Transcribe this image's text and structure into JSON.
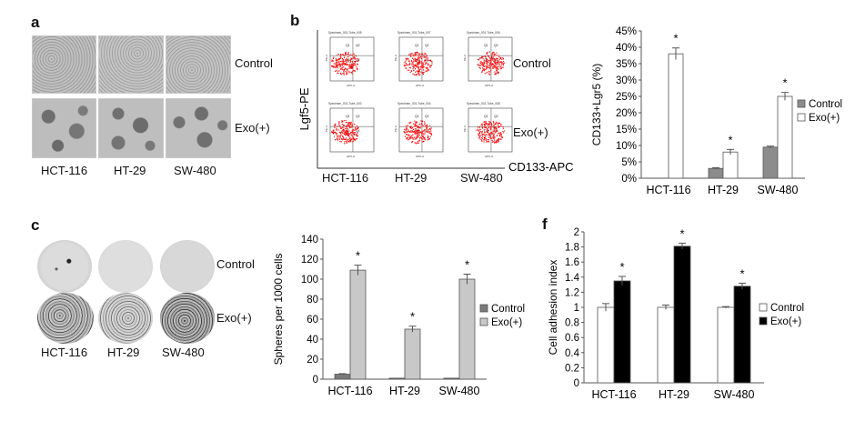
{
  "panels": {
    "a": {
      "letter": "a",
      "row_labels": [
        "Control",
        "Exo(+)"
      ],
      "col_labels": [
        "HCT-116",
        "HT-29",
        "SW-480"
      ]
    },
    "b": {
      "letter": "b",
      "row_labels": [
        "Control",
        "Exo(+)"
      ],
      "col_labels": [
        "HCT-116",
        "HT-29",
        "SW-480"
      ],
      "y_axis_label": "Lgf5-PE",
      "x_axis_label": "CD133-APC",
      "plot_titles": [
        [
          "Specimen_001-Tube_005",
          "Specimen_001-Tube_007",
          "Specimen_001-Tube_006"
        ],
        [
          "Specimen_001-Tube_003",
          "Specimen_001-Tube_004",
          "Specimen_001-Tube_008"
        ]
      ],
      "plot_axis_short": {
        "y": "PE-A",
        "x": "APC-A"
      },
      "quadrants": [
        "Q1",
        "Q2",
        "Q3",
        "Q4"
      ]
    },
    "c": {
      "letter": "c",
      "row_labels": [
        "Control",
        "Exo(+)"
      ],
      "col_labels": [
        "HCT-116",
        "HT-29",
        "SW-480"
      ]
    },
    "f": {
      "letter": "f"
    }
  },
  "chart_data": [
    {
      "id": "b-chart",
      "type": "bar",
      "ylabel": "CD133+Lgr5 (%)",
      "ylim": [
        0,
        45
      ],
      "yticks": [
        "0%",
        "5%",
        "10%",
        "15%",
        "20%",
        "25%",
        "30%",
        "35%",
        "40%",
        "45%"
      ],
      "categories": [
        "HCT-116",
        "HT-29",
        "SW-480"
      ],
      "series": [
        {
          "name": "Control",
          "color": "#8c8c8c",
          "values": [
            0,
            3,
            9.5
          ],
          "errors": [
            0,
            0.2,
            0.3
          ]
        },
        {
          "name": "Exo(+)",
          "color": "#ffffff",
          "values": [
            38,
            8,
            25
          ],
          "errors": [
            1.8,
            0.8,
            1.2
          ]
        }
      ],
      "markers": [
        "*",
        "*",
        "*"
      ],
      "legend": "right"
    },
    {
      "id": "c-chart",
      "type": "bar",
      "ylabel": "Spheres per 1000 cells",
      "ylim": [
        0,
        140
      ],
      "yticks": [
        "0",
        "20",
        "40",
        "60",
        "80",
        "100",
        "120",
        "140"
      ],
      "categories": [
        "HCT-116",
        "HT-29",
        "SW-480"
      ],
      "series": [
        {
          "name": "Control",
          "color": "#7a7a7a",
          "values": [
            5,
            1,
            1
          ],
          "errors": [
            0.5,
            0,
            0
          ]
        },
        {
          "name": "Exo(+)",
          "color": "#c8c8c8",
          "values": [
            109,
            50,
            100
          ],
          "errors": [
            5,
            3,
            5
          ]
        }
      ],
      "markers": [
        "*",
        "*",
        "*"
      ],
      "legend": "right"
    },
    {
      "id": "f-chart",
      "type": "bar",
      "ylabel": "Cell adhesion index",
      "ylim": [
        0,
        2
      ],
      "yticks": [
        "0",
        "0.2",
        "0.4",
        "0.6",
        "0.8",
        "1",
        "1.2",
        "1.4",
        "1.6",
        "1.8",
        "2"
      ],
      "categories": [
        "HCT-116",
        "HT-29",
        "SW-480"
      ],
      "series": [
        {
          "name": "Control",
          "color": "#ffffff",
          "values": [
            1,
            1,
            1
          ],
          "errors": [
            0.05,
            0.03,
            0.01
          ]
        },
        {
          "name": "Exo(+)",
          "color": "#000000",
          "values": [
            1.35,
            1.81,
            1.28
          ],
          "errors": [
            0.06,
            0.04,
            0.04
          ]
        }
      ],
      "markers": [
        "*",
        "*",
        "*"
      ],
      "legend": "right"
    }
  ]
}
